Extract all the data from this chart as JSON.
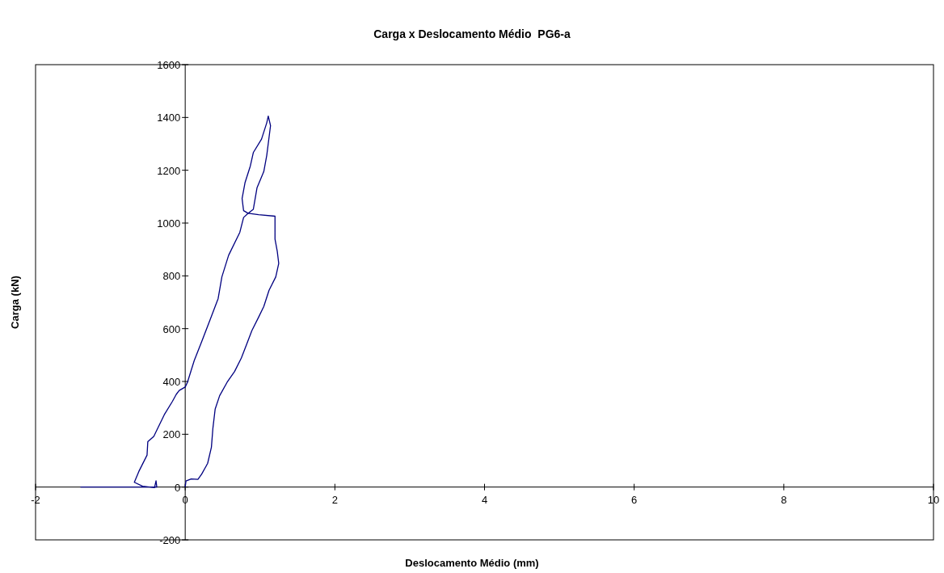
{
  "chart_data": {
    "type": "line",
    "title": "Carga x Deslocamento Médio  PG6-a",
    "xlabel": "Deslocamento Médio (mm)",
    "ylabel": "Carga (kN)",
    "xlim": [
      -2,
      10
    ],
    "xticks": [
      -2,
      0,
      2,
      4,
      6,
      8,
      10
    ],
    "ylim": [
      -200,
      1600
    ],
    "yticks": [
      -200,
      0,
      200,
      400,
      600,
      800,
      1000,
      1200,
      1400,
      1600
    ],
    "grid": false,
    "legend": false,
    "marker": "none",
    "line_style": "solid",
    "series": [
      {
        "color": "#000080",
        "x": [
          0,
          0.01,
          0.08,
          0.17,
          0.22,
          0.3,
          0.35,
          0.37,
          0.4,
          0.46,
          0.56,
          0.66,
          0.75,
          0.82,
          0.89,
          0.98,
          1.05,
          1.12,
          1.21,
          1.25,
          1.23,
          1.2,
          1.2,
          0.98,
          0.84,
          0.78,
          0.76,
          0.8,
          0.87,
          0.91,
          1.02,
          1.09,
          1.11,
          1.14,
          1.09,
          1.05,
          0.96,
          0.91,
          0.84,
          0.78,
          0.73,
          0.58,
          0.49,
          0.44,
          0.33,
          0.22,
          0.12,
          0.03,
          0,
          -0.08,
          -0.12,
          -0.17,
          -0.28,
          -0.42,
          -0.5,
          -0.51,
          -0.62,
          -0.68,
          -0.57,
          -0.41,
          -0.39,
          -0.38,
          -0.6,
          -1.4
        ],
        "values": [
          0,
          23,
          31,
          29,
          49,
          90,
          151,
          223,
          295,
          346,
          397,
          438,
          489,
          540,
          592,
          643,
          684,
          745,
          796,
          847,
          893,
          939,
          1026,
          1032,
          1037,
          1047,
          1093,
          1154,
          1216,
          1267,
          1318,
          1380,
          1405,
          1369,
          1257,
          1195,
          1134,
          1052,
          1037,
          1021,
          965,
          878,
          796,
          714,
          632,
          551,
          479,
          397,
          379,
          366,
          351,
          325,
          274,
          192,
          172,
          121,
          59,
          18,
          3,
          -2,
          24,
          0,
          0,
          0
        ]
      }
    ]
  }
}
